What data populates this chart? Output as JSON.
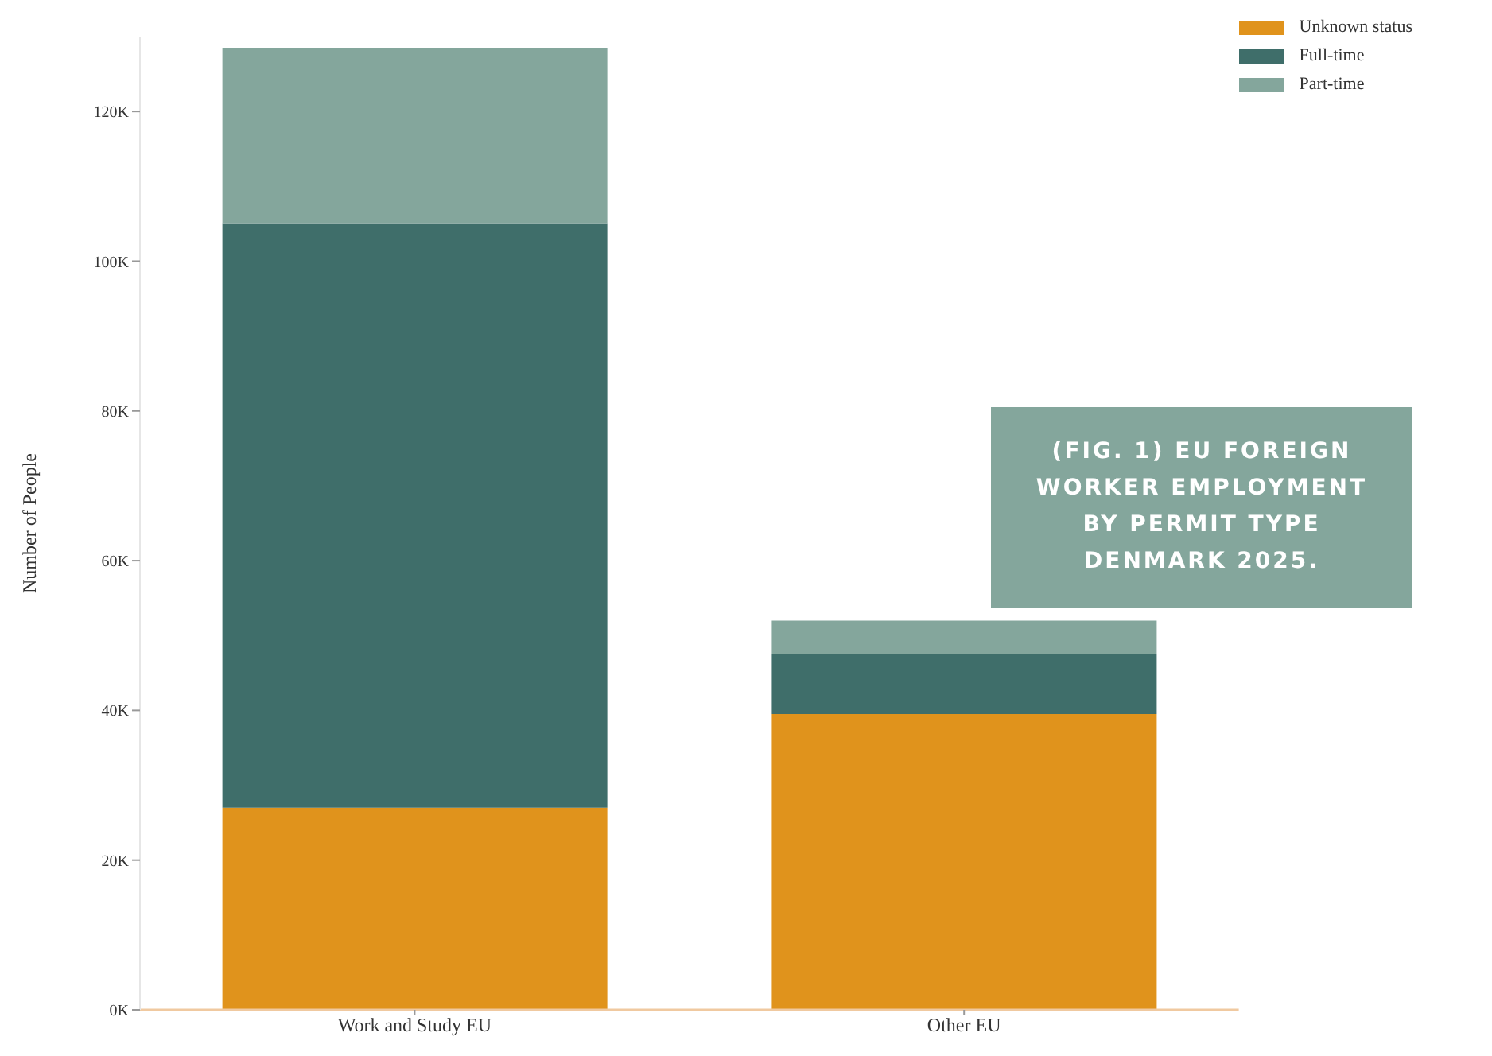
{
  "chart_data": {
    "type": "bar",
    "title": "(FIG. 1) EU FOREIGN WORKER EMPLOYMENT BY PERMIT TYPE DENMARK 2025.",
    "ylabel": "Number of People",
    "categories": [
      "Work and Study EU",
      "Other EU"
    ],
    "stacked": true,
    "series": [
      {
        "name": "Unknown status",
        "color": "#e0931c",
        "values": [
          27000,
          39500
        ]
      },
      {
        "name": "Full-time",
        "color": "#3f6e6a",
        "values": [
          78000,
          8000
        ]
      },
      {
        "name": "Part-time",
        "color": "#84a69c",
        "values": [
          23500,
          4500
        ]
      }
    ],
    "ylim": [
      0,
      130000
    ],
    "yticks": [
      {
        "value": 0,
        "label": "0K"
      },
      {
        "value": 20000,
        "label": "20K"
      },
      {
        "value": 40000,
        "label": "40K"
      },
      {
        "value": 60000,
        "label": "60K"
      },
      {
        "value": 80000,
        "label": "80K"
      },
      {
        "value": 100000,
        "label": "100K"
      },
      {
        "value": 120000,
        "label": "120K"
      }
    ],
    "grid": false,
    "legend": "top right"
  }
}
